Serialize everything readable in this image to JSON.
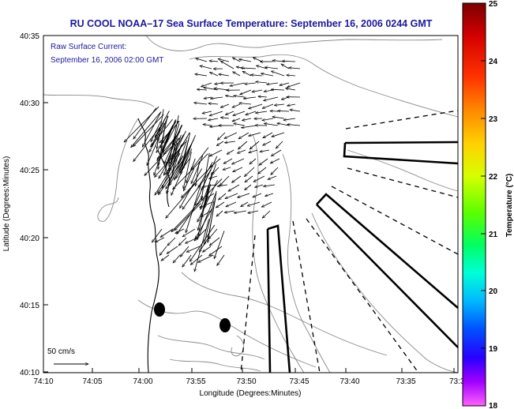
{
  "title": "RU COOL  NOAA–17  Sea Surface Temperature:  September 16, 2006 0244 GMT",
  "annotation": {
    "line1": "Raw Surface Current:",
    "line2": "September 16, 2006 02:00 GMT"
  },
  "scale_label": "50 cm/s",
  "axes": {
    "xlabel": "Longitude (Degrees:Minutes)",
    "ylabel": "Latitude (Degrees:Minutes)",
    "x_ticks": [
      "74:10",
      "74:05",
      "74:00",
      "73:55",
      "73:50",
      "73:45",
      "73:40",
      "73:35",
      "73:3"
    ],
    "y_ticks": [
      "40:35",
      "40:30",
      "40:25",
      "40:20",
      "40:15",
      "40:10"
    ]
  },
  "colorbar": {
    "label": "Temperature (°C)",
    "ticks": [
      "25",
      "24",
      "23",
      "22",
      "21",
      "20",
      "19",
      "18"
    ],
    "min": 18,
    "max": 25
  },
  "colors": {
    "title": "#1a1a9e",
    "annotation": "#1a1a9e",
    "arrows": "#000000",
    "contours": "#8a8a8a"
  }
}
